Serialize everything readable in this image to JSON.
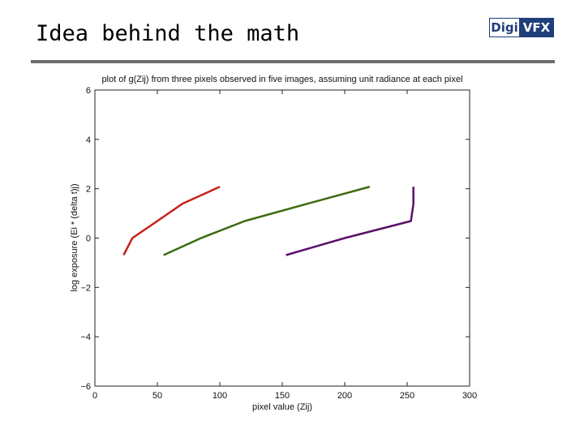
{
  "slide": {
    "title": "Idea behind the math",
    "logo": {
      "part1": "Digi",
      "part2": "VFX"
    }
  },
  "chart_data": {
    "type": "line",
    "title": "plot of g(Zij) from three pixels observed in five images, assuming unit radiance at each pixel",
    "xlabel": "pixel value (Zij)",
    "ylabel": "log exposure (Ei * (delta t)j)",
    "xlim": [
      0,
      300
    ],
    "ylim": [
      -6,
      6
    ],
    "xticks": [
      0,
      50,
      100,
      150,
      200,
      250,
      300
    ],
    "yticks": [
      -6,
      -4,
      -2,
      0,
      2,
      4,
      6
    ],
    "grid": false,
    "legend": "none",
    "series": [
      {
        "color": "#c8201a",
        "x": [
          23,
          30,
          50,
          70,
          100
        ],
        "y": [
          -0.69,
          0.0,
          0.69,
          1.39,
          2.08
        ]
      },
      {
        "color": "#3d6b10",
        "x": [
          55,
          85,
          120,
          170,
          220
        ],
        "y": [
          -0.69,
          0.0,
          0.69,
          1.39,
          2.08
        ]
      },
      {
        "color": "#5a0f6a",
        "x": [
          153,
          200,
          253,
          255,
          255
        ],
        "y": [
          -0.69,
          0.0,
          0.69,
          1.39,
          2.08
        ]
      }
    ]
  }
}
